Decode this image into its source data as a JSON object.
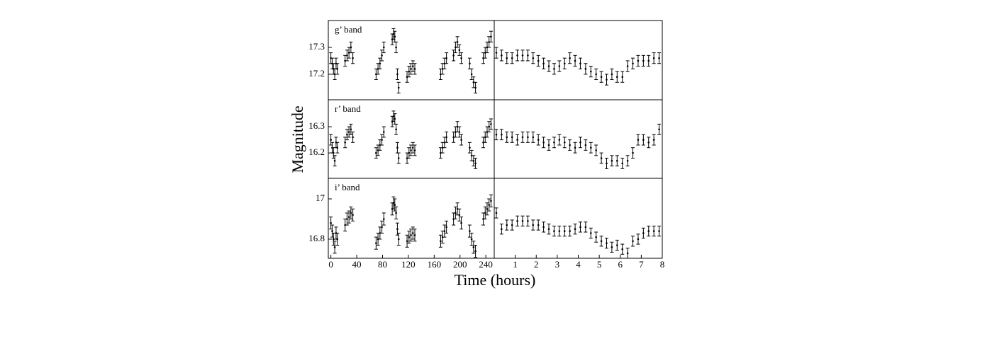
{
  "chart_data": [
    {
      "type": "scatter",
      "label": "g’ band",
      "ylabel": "Magnitude",
      "xlim": [
        -4,
        253
      ],
      "ylim": [
        17.105,
        17.4
      ],
      "yticks": [
        17.2,
        17.3
      ],
      "x": [
        0,
        2,
        4,
        6,
        8,
        10,
        22,
        25,
        28,
        31,
        34,
        70,
        73,
        76,
        79,
        82,
        95,
        97,
        99,
        101,
        103,
        105,
        118,
        121,
        124,
        127,
        130,
        170,
        173,
        176,
        179,
        190,
        193,
        196,
        199,
        202,
        215,
        218,
        221,
        224,
        236,
        239,
        242,
        245,
        248
      ],
      "values": [
        17.26,
        17.24,
        17.22,
        17.2,
        17.24,
        17.22,
        17.25,
        17.27,
        17.28,
        17.3,
        17.26,
        17.2,
        17.22,
        17.24,
        17.27,
        17.3,
        17.33,
        17.35,
        17.34,
        17.3,
        17.2,
        17.15,
        17.19,
        17.21,
        17.22,
        17.23,
        17.22,
        17.2,
        17.22,
        17.24,
        17.26,
        17.27,
        17.3,
        17.32,
        17.29,
        17.26,
        17.24,
        17.2,
        17.17,
        17.15,
        17.26,
        17.28,
        17.3,
        17.32,
        17.34
      ],
      "errors": [
        0.02,
        0.02,
        0.02,
        0.02,
        0.02,
        0.02,
        0.02,
        0.02,
        0.02,
        0.02,
        0.02,
        0.02,
        0.02,
        0.02,
        0.02,
        0.02,
        0.02,
        0.02,
        0.02,
        0.02,
        0.02,
        0.02,
        0.02,
        0.02,
        0.02,
        0.02,
        0.02,
        0.02,
        0.02,
        0.02,
        0.02,
        0.02,
        0.02,
        0.02,
        0.02,
        0.02,
        0.02,
        0.02,
        0.02,
        0.02,
        0.02,
        0.02,
        0.02,
        0.02,
        0.02
      ]
    },
    {
      "type": "scatter",
      "xlim": [
        0,
        8
      ],
      "ylim": [
        17.105,
        17.4
      ],
      "x": [
        0.1,
        0.35,
        0.6,
        0.85,
        1.1,
        1.35,
        1.6,
        1.85,
        2.1,
        2.35,
        2.6,
        2.85,
        3.1,
        3.35,
        3.6,
        3.85,
        4.1,
        4.35,
        4.6,
        4.85,
        5.1,
        5.35,
        5.6,
        5.85,
        6.1,
        6.35,
        6.6,
        6.85,
        7.1,
        7.35,
        7.6,
        7.85
      ],
      "values": [
        17.28,
        17.27,
        17.26,
        17.26,
        17.27,
        17.27,
        17.27,
        17.26,
        17.25,
        17.24,
        17.23,
        17.22,
        17.23,
        17.24,
        17.26,
        17.25,
        17.24,
        17.22,
        17.21,
        17.2,
        17.19,
        17.18,
        17.2,
        17.19,
        17.19,
        17.23,
        17.24,
        17.25,
        17.25,
        17.25,
        17.26,
        17.26
      ],
      "errors": [
        0.02,
        0.02,
        0.02,
        0.02,
        0.02,
        0.02,
        0.02,
        0.02,
        0.02,
        0.02,
        0.02,
        0.02,
        0.02,
        0.02,
        0.02,
        0.02,
        0.02,
        0.02,
        0.02,
        0.02,
        0.02,
        0.02,
        0.02,
        0.02,
        0.02,
        0.02,
        0.02,
        0.02,
        0.02,
        0.02,
        0.02,
        0.02
      ]
    },
    {
      "type": "scatter",
      "label": "r’ band",
      "xlim": [
        -4,
        253
      ],
      "ylim": [
        16.103,
        16.403
      ],
      "yticks": [
        16.2,
        16.3
      ],
      "x": [
        0,
        2,
        4,
        6,
        8,
        10,
        22,
        25,
        28,
        31,
        34,
        70,
        73,
        76,
        79,
        82,
        95,
        97,
        99,
        101,
        103,
        105,
        118,
        121,
        124,
        127,
        130,
        170,
        173,
        176,
        179,
        190,
        193,
        196,
        199,
        202,
        215,
        218,
        221,
        224,
        236,
        239,
        242,
        245,
        248
      ],
      "values": [
        16.25,
        16.22,
        16.2,
        16.17,
        16.24,
        16.22,
        16.24,
        16.27,
        16.28,
        16.29,
        16.26,
        16.2,
        16.21,
        16.23,
        16.25,
        16.28,
        16.32,
        16.34,
        16.33,
        16.29,
        16.22,
        16.18,
        16.18,
        16.2,
        16.21,
        16.22,
        16.21,
        16.2,
        16.22,
        16.24,
        16.26,
        16.26,
        16.28,
        16.3,
        16.28,
        16.25,
        16.22,
        16.19,
        16.17,
        16.16,
        16.24,
        16.26,
        16.28,
        16.3,
        16.31
      ],
      "errors": [
        0.02,
        0.02,
        0.02,
        0.02,
        0.02,
        0.02,
        0.02,
        0.02,
        0.02,
        0.02,
        0.02,
        0.02,
        0.02,
        0.02,
        0.02,
        0.02,
        0.02,
        0.02,
        0.02,
        0.02,
        0.02,
        0.02,
        0.02,
        0.02,
        0.02,
        0.02,
        0.02,
        0.02,
        0.02,
        0.02,
        0.02,
        0.02,
        0.02,
        0.02,
        0.02,
        0.02,
        0.02,
        0.02,
        0.02,
        0.02,
        0.02,
        0.02,
        0.02,
        0.02,
        0.02
      ]
    },
    {
      "type": "scatter",
      "xlim": [
        0,
        8
      ],
      "ylim": [
        16.103,
        16.403
      ],
      "x": [
        0.1,
        0.35,
        0.6,
        0.85,
        1.1,
        1.35,
        1.6,
        1.85,
        2.1,
        2.35,
        2.6,
        2.85,
        3.1,
        3.35,
        3.6,
        3.85,
        4.1,
        4.35,
        4.6,
        4.85,
        5.1,
        5.35,
        5.6,
        5.85,
        6.1,
        6.35,
        6.6,
        6.85,
        7.1,
        7.35,
        7.6,
        7.85
      ],
      "values": [
        16.27,
        16.27,
        16.26,
        16.26,
        16.25,
        16.26,
        16.26,
        16.26,
        16.25,
        16.24,
        16.23,
        16.24,
        16.25,
        16.24,
        16.23,
        16.22,
        16.24,
        16.23,
        16.22,
        16.21,
        16.18,
        16.16,
        16.17,
        16.17,
        16.16,
        16.17,
        16.2,
        16.25,
        16.25,
        16.24,
        16.25,
        16.29
      ],
      "errors": [
        0.02,
        0.02,
        0.02,
        0.02,
        0.02,
        0.02,
        0.02,
        0.02,
        0.02,
        0.02,
        0.02,
        0.02,
        0.02,
        0.02,
        0.02,
        0.02,
        0.02,
        0.02,
        0.02,
        0.02,
        0.02,
        0.02,
        0.02,
        0.02,
        0.02,
        0.02,
        0.02,
        0.02,
        0.02,
        0.02,
        0.02,
        0.02
      ]
    },
    {
      "type": "scatter",
      "label": "i’ band",
      "xlabel": "Time (hours)",
      "xlim": [
        -4,
        253
      ],
      "ylim": [
        16.705,
        17.102
      ],
      "yticks": [
        16.8,
        17
      ],
      "xticks": [
        0,
        40,
        80,
        120,
        160,
        200,
        240
      ],
      "x": [
        0,
        2,
        4,
        6,
        8,
        10,
        22,
        25,
        28,
        31,
        34,
        70,
        73,
        76,
        79,
        82,
        95,
        97,
        99,
        101,
        103,
        105,
        118,
        121,
        124,
        127,
        130,
        170,
        173,
        176,
        179,
        190,
        193,
        196,
        199,
        202,
        215,
        218,
        221,
        224,
        236,
        239,
        242,
        245,
        248
      ],
      "values": [
        16.88,
        16.84,
        16.8,
        16.76,
        16.83,
        16.8,
        16.87,
        16.9,
        16.91,
        16.93,
        16.92,
        16.78,
        16.8,
        16.83,
        16.86,
        16.9,
        16.95,
        16.98,
        16.97,
        16.93,
        16.85,
        16.8,
        16.79,
        16.81,
        16.82,
        16.83,
        16.82,
        16.79,
        16.81,
        16.84,
        16.86,
        16.9,
        16.93,
        16.95,
        16.92,
        16.88,
        16.84,
        16.8,
        16.76,
        16.74,
        16.9,
        16.93,
        16.95,
        16.97,
        16.99
      ],
      "errors": [
        0.03,
        0.03,
        0.03,
        0.03,
        0.03,
        0.03,
        0.03,
        0.03,
        0.03,
        0.03,
        0.03,
        0.03,
        0.03,
        0.03,
        0.03,
        0.03,
        0.03,
        0.03,
        0.03,
        0.03,
        0.03,
        0.03,
        0.03,
        0.03,
        0.03,
        0.03,
        0.03,
        0.03,
        0.03,
        0.03,
        0.03,
        0.03,
        0.03,
        0.03,
        0.03,
        0.03,
        0.03,
        0.03,
        0.03,
        0.03,
        0.03,
        0.03,
        0.03,
        0.03,
        0.03
      ]
    },
    {
      "type": "scatter",
      "xlim": [
        0,
        8
      ],
      "ylim": [
        16.705,
        17.102
      ],
      "xticks": [
        1,
        2,
        3,
        4,
        5,
        6,
        7,
        8
      ],
      "x": [
        0.1,
        0.35,
        0.6,
        0.85,
        1.1,
        1.35,
        1.6,
        1.85,
        2.1,
        2.35,
        2.6,
        2.85,
        3.1,
        3.35,
        3.6,
        3.85,
        4.1,
        4.35,
        4.6,
        4.85,
        5.1,
        5.35,
        5.6,
        5.85,
        6.1,
        6.35,
        6.6,
        6.85,
        7.1,
        7.35,
        7.6,
        7.85
      ],
      "values": [
        16.93,
        16.85,
        16.87,
        16.87,
        16.89,
        16.89,
        16.89,
        16.87,
        16.87,
        16.86,
        16.85,
        16.84,
        16.84,
        16.84,
        16.84,
        16.85,
        16.86,
        16.86,
        16.83,
        16.81,
        16.79,
        16.78,
        16.76,
        16.77,
        16.75,
        16.73,
        16.79,
        16.8,
        16.83,
        16.84,
        16.84,
        16.84
      ],
      "errors": [
        0.025,
        0.025,
        0.025,
        0.025,
        0.025,
        0.025,
        0.025,
        0.025,
        0.025,
        0.025,
        0.025,
        0.025,
        0.025,
        0.025,
        0.025,
        0.025,
        0.025,
        0.025,
        0.025,
        0.025,
        0.025,
        0.025,
        0.025,
        0.025,
        0.025,
        0.025,
        0.025,
        0.025,
        0.025,
        0.025,
        0.025,
        0.025
      ]
    }
  ]
}
